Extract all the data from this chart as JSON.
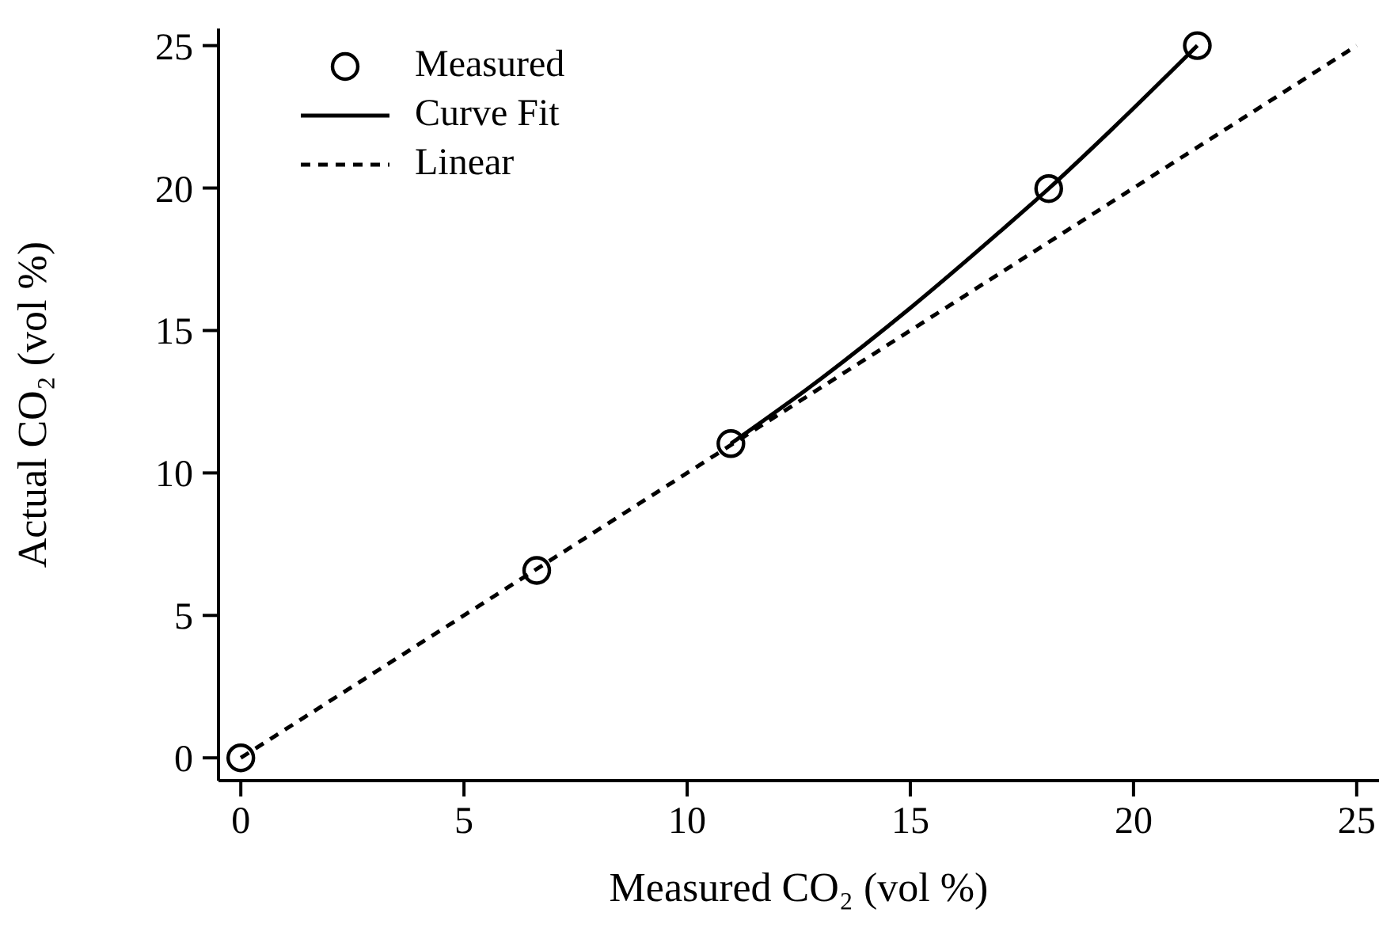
{
  "chart_data": {
    "type": "scatter",
    "xlabel": "Measured CO₂ (vol %)",
    "ylabel": "Actual CO₂ (vol %)",
    "xlim": [
      -0.5,
      25.5
    ],
    "ylim": [
      -0.8,
      25.6
    ],
    "xticks": [
      0,
      5,
      10,
      15,
      20,
      25
    ],
    "yticks": [
      0,
      5,
      10,
      15,
      20,
      25
    ],
    "grid": false,
    "legend": "top left",
    "series": [
      {
        "name": "Measured",
        "color": "#000000",
        "marker": "circle",
        "x": [
          0,
          6.63,
          10.98,
          18.1,
          21.43
        ],
        "values": [
          0,
          6.58,
          11.03,
          19.98,
          25
        ]
      },
      {
        "name": "Curve Fit",
        "type": "line",
        "color": "#000000",
        "marker": "none",
        "line_style": "solid",
        "x": [
          10.98,
          13,
          15,
          17,
          18.1,
          19.5,
          21.43
        ],
        "values": [
          11.03,
          13.31,
          15.79,
          18.46,
          19.98,
          22.04,
          25
        ]
      },
      {
        "name": "Linear",
        "type": "line",
        "color": "#000000",
        "marker": "none",
        "line_style": "dashed",
        "x": [
          0,
          25
        ],
        "values": [
          0,
          25
        ]
      }
    ]
  }
}
